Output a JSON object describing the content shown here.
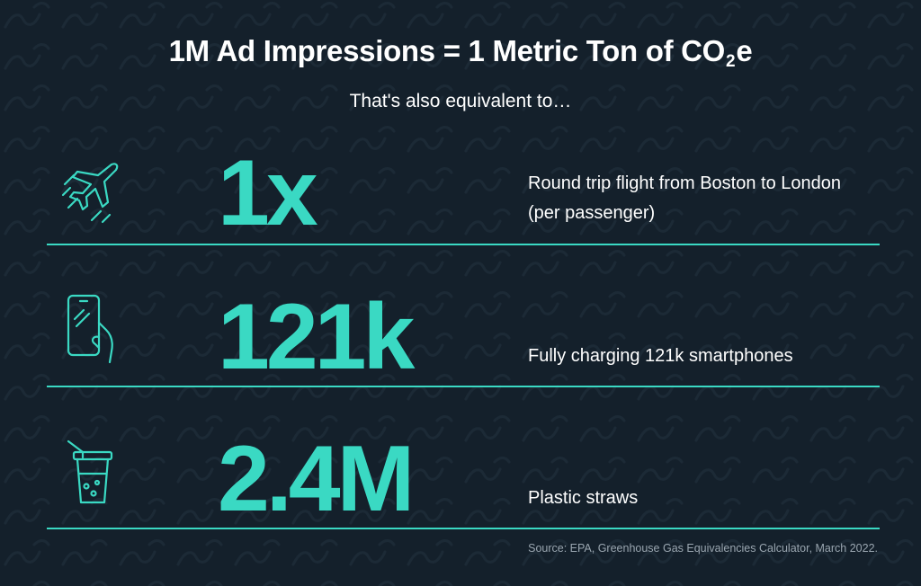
{
  "header": {
    "title_prefix": "1M Ad Impressions = 1 Metric Ton of CO",
    "title_sub": "2",
    "title_suffix": "e",
    "subtitle": "That's also equivalent to…"
  },
  "rows": [
    {
      "icon": "airplane-icon",
      "value": "1x",
      "description": "Round trip flight from Boston to London (per passenger)"
    },
    {
      "icon": "smartphone-icon",
      "value": "121k",
      "description": "Fully charging 121k smartphones"
    },
    {
      "icon": "cup-with-straw-icon",
      "value": "2.4M",
      "description": "Plastic straws"
    }
  ],
  "footer": {
    "source": "Source: EPA, Greenhouse Gas Equivalencies Calculator, March 2022."
  },
  "colors": {
    "background": "#14202b",
    "accent": "#3ad9c3",
    "text": "#ffffff",
    "muted": "#9aa6b0"
  }
}
